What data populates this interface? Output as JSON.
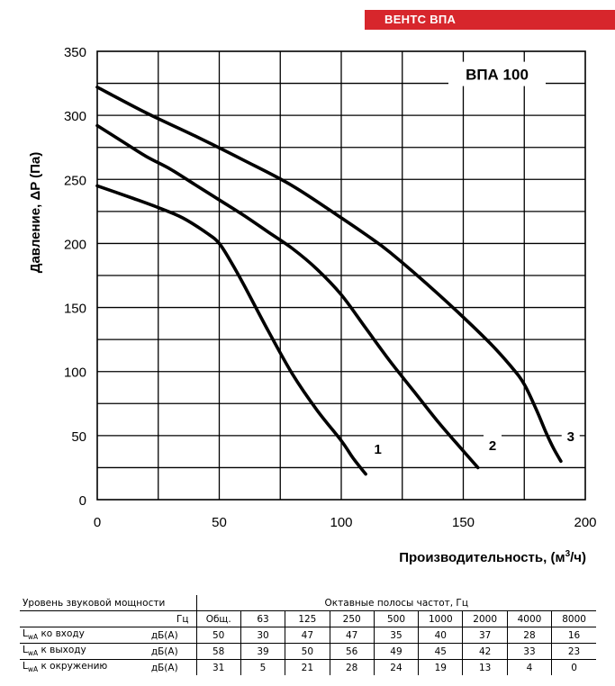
{
  "brand": "ВЕНТС ВПА",
  "chart_data": {
    "type": "line",
    "title": "ВПА 100",
    "xlabel": "Производительность, (м³/ч)",
    "xlabel_main": "Производительность, (м",
    "xlabel_sup": "3",
    "xlabel_end": "/ч)",
    "ylabel": "Давление, ΔP (Па)",
    "xlim": [
      0,
      200
    ],
    "ylim": [
      0,
      350
    ],
    "xticks": [
      0,
      50,
      100,
      150,
      200
    ],
    "yticks": [
      0,
      50,
      100,
      150,
      200,
      250,
      300,
      350
    ],
    "grid": true,
    "series": [
      {
        "name": "1",
        "x": [
          0,
          15,
          25,
          35,
          45,
          50,
          55,
          60,
          70,
          80,
          90,
          100,
          105,
          110
        ],
        "y": [
          245,
          235,
          228,
          220,
          208,
          200,
          185,
          168,
          132,
          98,
          70,
          46,
          32,
          20
        ]
      },
      {
        "name": "2",
        "x": [
          0,
          10,
          20,
          30,
          40,
          50,
          60,
          70,
          80,
          90,
          100,
          110,
          120,
          130,
          140,
          150,
          156
        ],
        "y": [
          292,
          280,
          268,
          258,
          246,
          234,
          222,
          209,
          196,
          180,
          160,
          134,
          108,
          84,
          60,
          38,
          25
        ]
      },
      {
        "name": "3",
        "x": [
          0,
          20,
          40,
          60,
          80,
          100,
          110,
          120,
          140,
          160,
          170,
          175,
          180,
          184,
          187,
          190
        ],
        "y": [
          322,
          302,
          284,
          265,
          245,
          220,
          207,
          193,
          160,
          124,
          103,
          90,
          70,
          52,
          40,
          30
        ]
      }
    ]
  },
  "sound_table": {
    "header_label": "Уровень звуковой мощности",
    "header_bands": "Октавные полосы частот, Гц",
    "unit_hz": "Гц",
    "bands": [
      "Общ.",
      "63",
      "125",
      "250",
      "500",
      "1000",
      "2000",
      "4000",
      "8000"
    ],
    "rows": [
      {
        "prefix": "L",
        "sub": "wA",
        "suffix": " ко входу",
        "unit": "дБ(А)",
        "values": [
          "50",
          "30",
          "47",
          "47",
          "35",
          "40",
          "37",
          "28",
          "16"
        ]
      },
      {
        "prefix": "L",
        "sub": "wA",
        "suffix": " к выходу",
        "unit": "дБ(А)",
        "values": [
          "58",
          "39",
          "50",
          "56",
          "49",
          "45",
          "42",
          "33",
          "23"
        ]
      },
      {
        "prefix": "L",
        "sub": "wA",
        "suffix": " к окружению",
        "unit": "дБ(А)",
        "values": [
          "31",
          "5",
          "21",
          "28",
          "24",
          "19",
          "13",
          "4",
          "0"
        ]
      }
    ]
  }
}
